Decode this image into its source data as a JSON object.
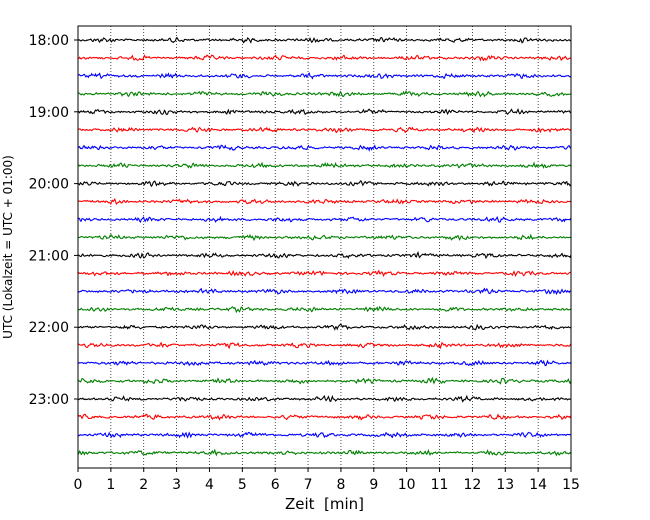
{
  "chart_data": {
    "type": "line",
    "subtype": "helicorder",
    "title": "",
    "xlabel": "Zeit  [min]",
    "ylabel": "UTC (Lokalzeit = UTC + 01:00)",
    "xlim": [
      0,
      15
    ],
    "x_ticks": [
      0,
      1,
      2,
      3,
      4,
      5,
      6,
      7,
      8,
      9,
      10,
      11,
      12,
      13,
      14,
      15
    ],
    "x_tick_labels": [
      "0",
      "1",
      "2",
      "3",
      "4",
      "5",
      "6",
      "7",
      "8",
      "9",
      "10",
      "11",
      "12",
      "13",
      "14",
      "15"
    ],
    "y_tick_labels": [
      "18:00",
      "19:00",
      "20:00",
      "21:00",
      "22:00",
      "23:00"
    ],
    "y_tick_trace_index": [
      0,
      4,
      8,
      12,
      16,
      20
    ],
    "trace_colors": [
      "#000000",
      "#ff0000",
      "#0000ff",
      "#008000"
    ],
    "trace_count": 24,
    "trace_interval_min": 15,
    "grid": "vertical-dotted",
    "legend": "none"
  }
}
